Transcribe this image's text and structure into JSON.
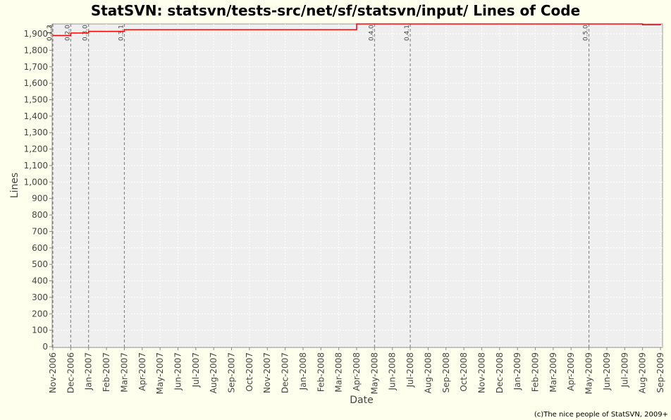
{
  "chart_data": {
    "type": "line",
    "title": "StatSVN: statsvn/tests-src/net/sf/statsvn/input/ Lines of Code",
    "xlabel": "Date",
    "ylabel": "Lines",
    "footer": "(c)The nice people of StatSVN, 2009+",
    "x": [
      "2006-11",
      "2006-12",
      "2007-01",
      "2007-03",
      "2008-04",
      "2009-08",
      "2009-09"
    ],
    "series": [
      {
        "name": "Lines",
        "color": "#ff0000",
        "values": [
          1890,
          1905,
          1915,
          1925,
          1960,
          1955,
          1960
        ]
      }
    ],
    "step": true,
    "markers": [
      {
        "x": "2006-11",
        "label": "0.1.2"
      },
      {
        "x": "2006-11",
        "label": "0.1.3"
      },
      {
        "x": "2006-12",
        "label": "0.2.0"
      },
      {
        "x": "2007-01",
        "label": "0.3.0"
      },
      {
        "x": "2007-03",
        "label": "0.3.1"
      },
      {
        "x": "2008-05",
        "label": "0.4.0"
      },
      {
        "x": "2008-07",
        "label": "0.4.1"
      },
      {
        "x": "2009-05",
        "label": "0.5.0"
      }
    ],
    "xlim": [
      "2006-11",
      "2009-09"
    ],
    "xticks": [
      {
        "value": "2006-11",
        "label": "Nov-2006"
      },
      {
        "value": "2006-12",
        "label": "Dec-2006"
      },
      {
        "value": "2007-01",
        "label": "Jan-2007"
      },
      {
        "value": "2007-02",
        "label": "Feb-2007"
      },
      {
        "value": "2007-03",
        "label": "Mar-2007"
      },
      {
        "value": "2007-04",
        "label": "Apr-2007"
      },
      {
        "value": "2007-05",
        "label": "May-2007"
      },
      {
        "value": "2007-06",
        "label": "Jun-2007"
      },
      {
        "value": "2007-07",
        "label": "Jul-2007"
      },
      {
        "value": "2007-08",
        "label": "Aug-2007"
      },
      {
        "value": "2007-09",
        "label": "Sep-2007"
      },
      {
        "value": "2007-10",
        "label": "Oct-2007"
      },
      {
        "value": "2007-11",
        "label": "Nov-2007"
      },
      {
        "value": "2007-12",
        "label": "Dec-2007"
      },
      {
        "value": "2008-01",
        "label": "Jan-2008"
      },
      {
        "value": "2008-02",
        "label": "Feb-2008"
      },
      {
        "value": "2008-03",
        "label": "Mar-2008"
      },
      {
        "value": "2008-04",
        "label": "Apr-2008"
      },
      {
        "value": "2008-05",
        "label": "May-2008"
      },
      {
        "value": "2008-06",
        "label": "Jun-2008"
      },
      {
        "value": "2008-07",
        "label": "Jul-2008"
      },
      {
        "value": "2008-08",
        "label": "Aug-2008"
      },
      {
        "value": "2008-09",
        "label": "Sep-2008"
      },
      {
        "value": "2008-10",
        "label": "Oct-2008"
      },
      {
        "value": "2008-11",
        "label": "Nov-2008"
      },
      {
        "value": "2008-12",
        "label": "Dec-2008"
      },
      {
        "value": "2009-01",
        "label": "Jan-2009"
      },
      {
        "value": "2009-02",
        "label": "Feb-2009"
      },
      {
        "value": "2009-03",
        "label": "Mar-2009"
      },
      {
        "value": "2009-04",
        "label": "Apr-2009"
      },
      {
        "value": "2009-05",
        "label": "May-2009"
      },
      {
        "value": "2009-06",
        "label": "Jun-2009"
      },
      {
        "value": "2009-07",
        "label": "Jul-2009"
      },
      {
        "value": "2009-08",
        "label": "Aug-2009"
      },
      {
        "value": "2009-09",
        "label": "Sep-2009"
      }
    ],
    "ylim": [
      0,
      1960
    ],
    "yticks": [
      0,
      100,
      200,
      300,
      400,
      500,
      600,
      700,
      800,
      900,
      {
        "value": 1000,
        "label": "1,000"
      },
      {
        "value": 1100,
        "label": "1,100"
      },
      {
        "value": 1200,
        "label": "1,200"
      },
      {
        "value": 1300,
        "label": "1,300"
      },
      {
        "value": 1400,
        "label": "1,400"
      },
      {
        "value": 1500,
        "label": "1,500"
      },
      {
        "value": 1600,
        "label": "1,600"
      },
      {
        "value": 1700,
        "label": "1,700"
      },
      {
        "value": 1800,
        "label": "1,800"
      },
      {
        "value": 1900,
        "label": "1,900"
      }
    ],
    "grid": true
  }
}
